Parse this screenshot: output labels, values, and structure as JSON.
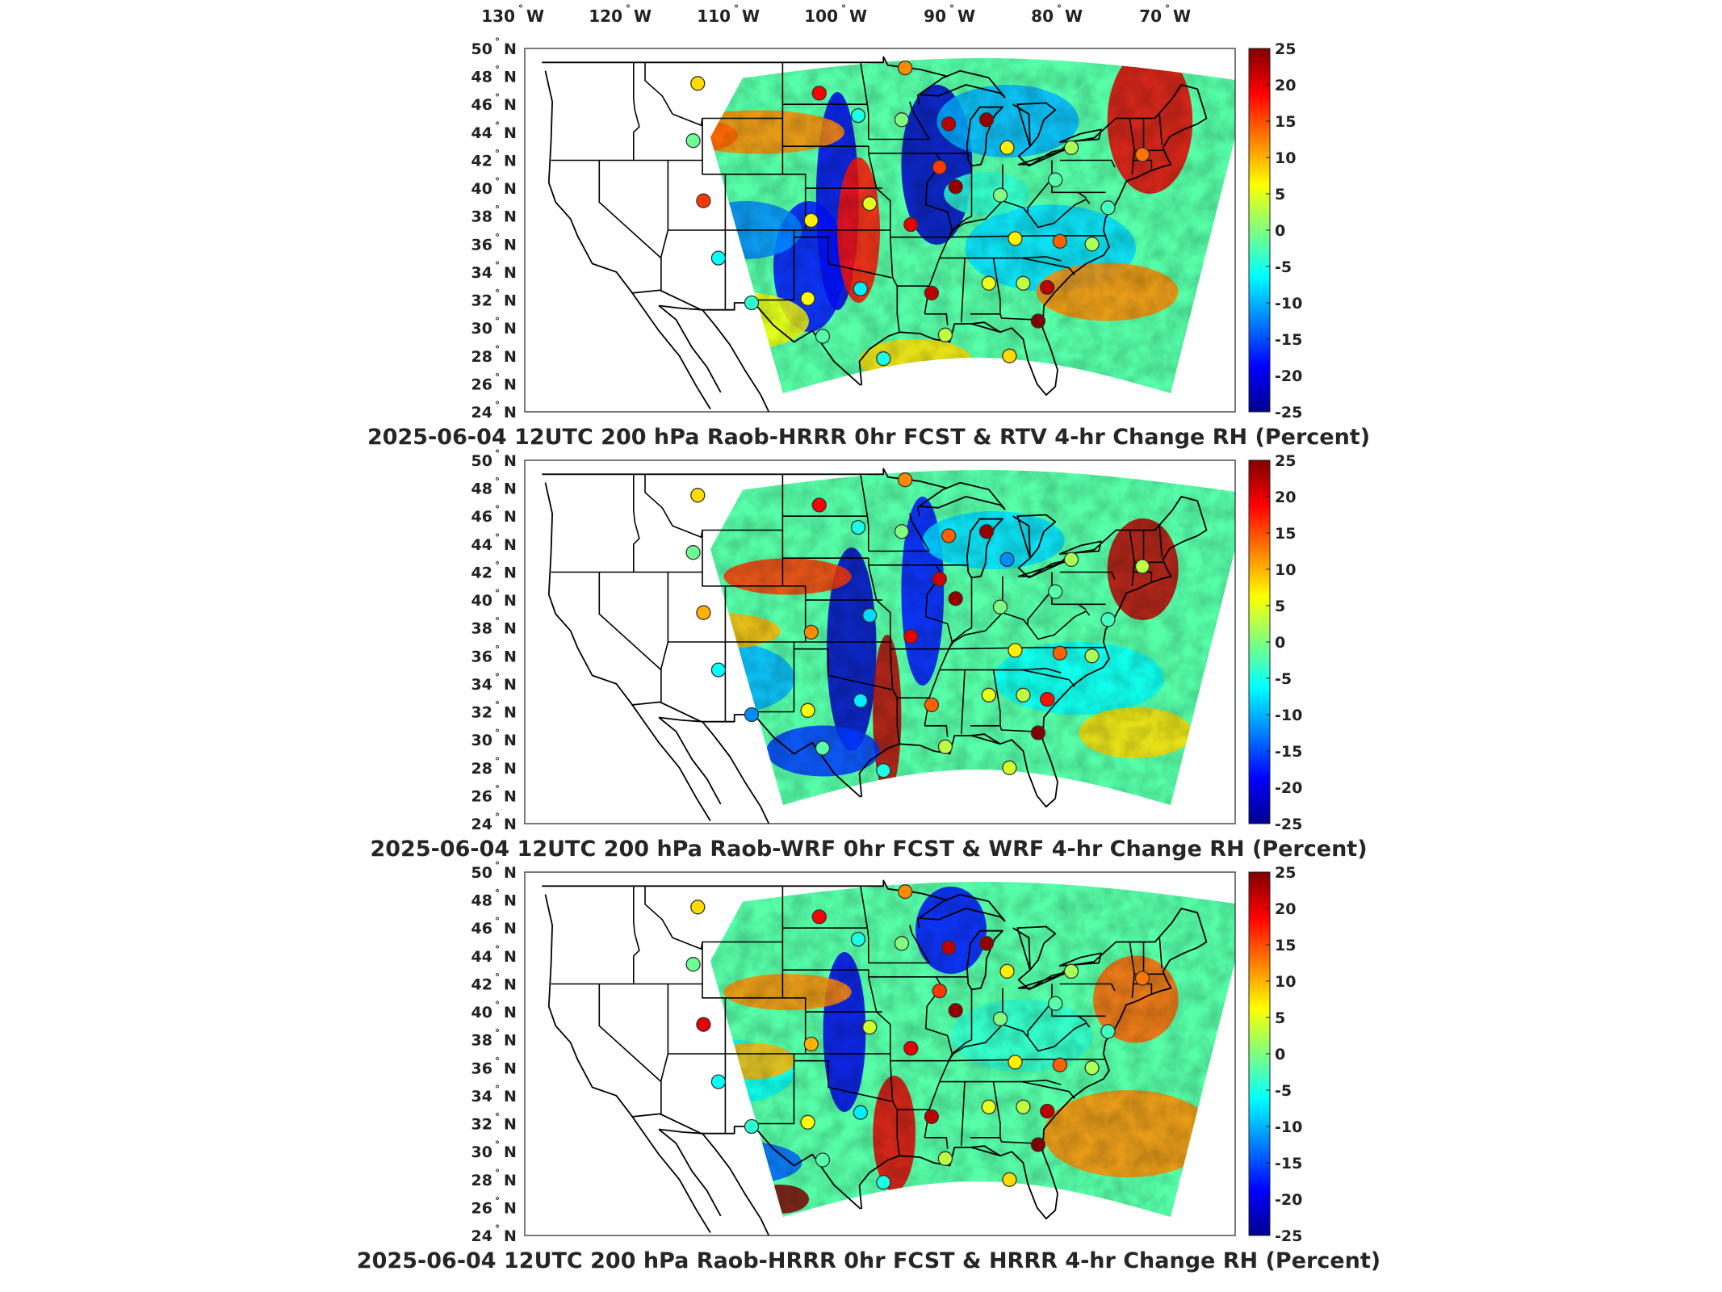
{
  "top_longitude_labels": [
    {
      "deg": "130",
      "hemi": "W"
    },
    {
      "deg": "120",
      "hemi": "W"
    },
    {
      "deg": "110",
      "hemi": "W"
    },
    {
      "deg": "100",
      "hemi": "W"
    },
    {
      "deg": "90",
      "hemi": "W"
    },
    {
      "deg": "80",
      "hemi": "W"
    },
    {
      "deg": "70",
      "hemi": "W"
    }
  ],
  "latitude_labels": [
    {
      "deg": "50",
      "hemi": "N"
    },
    {
      "deg": "48",
      "hemi": "N"
    },
    {
      "deg": "46",
      "hemi": "N"
    },
    {
      "deg": "44",
      "hemi": "N"
    },
    {
      "deg": "42",
      "hemi": "N"
    },
    {
      "deg": "40",
      "hemi": "N"
    },
    {
      "deg": "38",
      "hemi": "N"
    },
    {
      "deg": "36",
      "hemi": "N"
    },
    {
      "deg": "34",
      "hemi": "N"
    },
    {
      "deg": "32",
      "hemi": "N"
    },
    {
      "deg": "30",
      "hemi": "N"
    },
    {
      "deg": "28",
      "hemi": "N"
    },
    {
      "deg": "26",
      "hemi": "N"
    },
    {
      "deg": "24",
      "hemi": "N"
    }
  ],
  "colorbar": {
    "ticks": [
      "25",
      "20",
      "15",
      "10",
      "5",
      "0",
      "-5",
      "-10",
      "-15",
      "-20",
      "-25"
    ],
    "min": -25,
    "max": 25,
    "colors": [
      "#00008f",
      "#0000ff",
      "#0080ff",
      "#00ffff",
      "#80ff80",
      "#ffff00",
      "#ff8000",
      "#ff0000",
      "#800000"
    ]
  },
  "panels": [
    {
      "title": "2025-06-04 12UTC 200 hPa Raob-HRRR 0hr FCST & RTV 4-hr Change RH (Percent)"
    },
    {
      "title": "2025-06-04 12UTC 200 hPa Raob-WRF 0hr FCST & WRF 4-hr Change RH (Percent)"
    },
    {
      "title": "2025-06-04 12UTC 200 hPa Raob-HRRR 0hr FCST & HRRR 4-hr Change RH (Percent)"
    }
  ],
  "stations": [
    {
      "lon": -111.4,
      "lat": 47.5,
      "v": [
        8,
        8,
        8
      ]
    },
    {
      "lon": -100.8,
      "lat": 46.8,
      "v": [
        19,
        19,
        19
      ]
    },
    {
      "lon": -97.4,
      "lat": 45.2,
      "v": [
        -5,
        -5,
        -5
      ]
    },
    {
      "lon": -93.6,
      "lat": 44.9,
      "v": [
        0,
        0,
        0
      ]
    },
    {
      "lon": -93.3,
      "lat": 48.6,
      "v": [
        12,
        12,
        12
      ]
    },
    {
      "lon": -89.5,
      "lat": 44.6,
      "v": [
        22,
        14,
        22
      ]
    },
    {
      "lon": -86.2,
      "lat": 44.9,
      "v": [
        24,
        24,
        24
      ]
    },
    {
      "lon": -84.4,
      "lat": 42.9,
      "v": [
        7,
        -12,
        7
      ]
    },
    {
      "lon": -78.8,
      "lat": 42.9,
      "v": [
        2,
        2,
        2
      ]
    },
    {
      "lon": -72.6,
      "lat": 42.4,
      "v": [
        13,
        3,
        13
      ]
    },
    {
      "lon": -111.8,
      "lat": 43.4,
      "v": [
        -1,
        -1,
        -1
      ]
    },
    {
      "lon": -90.3,
      "lat": 41.5,
      "v": [
        16,
        21,
        16
      ]
    },
    {
      "lon": -88.9,
      "lat": 40.1,
      "v": [
        24,
        24,
        24
      ]
    },
    {
      "lon": -85.0,
      "lat": 39.5,
      "v": [
        0,
        0,
        0
      ]
    },
    {
      "lon": -80.2,
      "lat": 40.6,
      "v": [
        -2,
        -2,
        -2
      ]
    },
    {
      "lon": -110.9,
      "lat": 39.1,
      "v": [
        16,
        10,
        20
      ]
    },
    {
      "lon": -101.5,
      "lat": 37.7,
      "v": [
        7,
        12,
        10
      ]
    },
    {
      "lon": -96.4,
      "lat": 38.9,
      "v": [
        5,
        -8,
        4
      ]
    },
    {
      "lon": -92.8,
      "lat": 37.4,
      "v": [
        20,
        20,
        20
      ]
    },
    {
      "lon": -83.7,
      "lat": 36.4,
      "v": [
        7,
        7,
        7
      ]
    },
    {
      "lon": -79.8,
      "lat": 36.2,
      "v": [
        14,
        14,
        14
      ]
    },
    {
      "lon": -75.6,
      "lat": 38.6,
      "v": [
        -3,
        -3,
        -3
      ]
    },
    {
      "lon": -77.0,
      "lat": 36.0,
      "v": [
        2,
        2,
        2
      ]
    },
    {
      "lon": -109.6,
      "lat": 35.0,
      "v": [
        -6,
        -6,
        -6
      ]
    },
    {
      "lon": -101.8,
      "lat": 32.1,
      "v": [
        6,
        6,
        6
      ]
    },
    {
      "lon": -97.2,
      "lat": 32.8,
      "v": [
        -7,
        -7,
        -7
      ]
    },
    {
      "lon": -91.0,
      "lat": 32.5,
      "v": [
        22,
        14,
        22
      ]
    },
    {
      "lon": -86.0,
      "lat": 33.2,
      "v": [
        5,
        5,
        5
      ]
    },
    {
      "lon": -83.0,
      "lat": 33.2,
      "v": [
        3,
        3,
        3
      ]
    },
    {
      "lon": -80.9,
      "lat": 32.9,
      "v": [
        22,
        18,
        22
      ]
    },
    {
      "lon": -81.7,
      "lat": 30.5,
      "v": [
        25,
        25,
        25
      ]
    },
    {
      "lon": -84.2,
      "lat": 28.0,
      "v": [
        8,
        4,
        8
      ]
    },
    {
      "lon": -106.7,
      "lat": 31.8,
      "v": [
        -4,
        -12,
        -4
      ]
    },
    {
      "lon": -100.5,
      "lat": 29.4,
      "v": [
        -2,
        -2,
        -2
      ]
    },
    {
      "lon": -95.2,
      "lat": 27.8,
      "v": [
        -5,
        -5,
        -5
      ]
    },
    {
      "lon": -89.8,
      "lat": 29.5,
      "v": [
        3,
        3,
        3
      ]
    }
  ]
}
